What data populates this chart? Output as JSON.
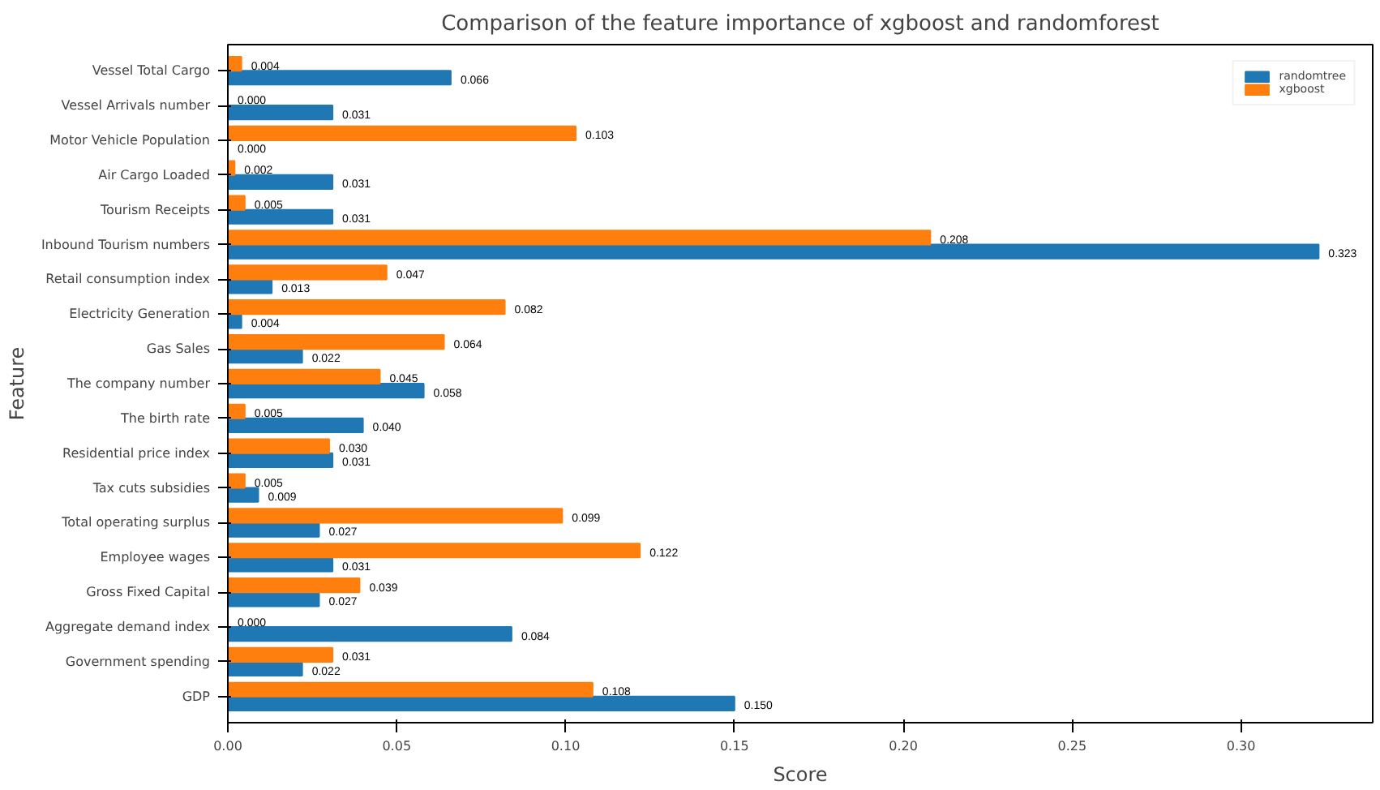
{
  "chart_data": {
    "type": "bar",
    "orientation": "horizontal",
    "title": "Comparison of the feature importance of xgboost and randomforest",
    "xlabel": "Score",
    "ylabel": "Feature",
    "categories": [
      "Vessel Total Cargo",
      "Vessel Arrivals number",
      "Motor Vehicle Population",
      "Air Cargo Loaded",
      "Tourism Receipts",
      "Inbound Tourism numbers",
      "Retail consumption index",
      "Electricity Generation",
      "Gas Sales",
      "The company number",
      "The birth rate",
      "Residential price index",
      "Tax cuts subsidies",
      "Total operating surplus",
      "Employee wages",
      "Gross Fixed Capital",
      "Aggregate demand index",
      "Government spending",
      "GDP"
    ],
    "series": [
      {
        "name": "randomtree",
        "color": "#1f77b4",
        "values": [
          0.066,
          0.031,
          0.0,
          0.031,
          0.031,
          0.323,
          0.013,
          0.004,
          0.022,
          0.058,
          0.04,
          0.031,
          0.009,
          0.027,
          0.031,
          0.027,
          0.084,
          0.022,
          0.15
        ],
        "value_labels": [
          "0.066",
          "0.031",
          "0.000",
          "0.031",
          "0.031",
          "0.323",
          "0.013",
          "0.004",
          "0.022",
          "0.058",
          "0.040",
          "0.031",
          "0.009",
          "0.027",
          "0.031",
          "0.027",
          "0.084",
          "0.022",
          "0.150"
        ]
      },
      {
        "name": "xgboost",
        "color": "#ff7f0e",
        "values": [
          0.004,
          0.0,
          0.103,
          0.002,
          0.005,
          0.208,
          0.047,
          0.082,
          0.064,
          0.045,
          0.005,
          0.03,
          0.005,
          0.099,
          0.122,
          0.039,
          0.0,
          0.031,
          0.108
        ],
        "value_labels": [
          "0.004",
          "0.000",
          "0.103",
          "0.002",
          "0.005",
          "0.208",
          "0.047",
          "0.082",
          "0.064",
          "0.045",
          "0.005",
          "0.030",
          "0.005",
          "0.099",
          "0.122",
          "0.039",
          "0.000",
          "0.031",
          "0.108"
        ]
      }
    ],
    "xlim": [
      0,
      0.339
    ],
    "xticks": [
      {
        "value": 0,
        "label": "0.00"
      },
      {
        "value": 0.05,
        "label": "0.05"
      },
      {
        "value": 0.1,
        "label": "0.10"
      },
      {
        "value": 0.15,
        "label": "0.15"
      },
      {
        "value": 0.2,
        "label": "0.20"
      },
      {
        "value": 0.25,
        "label": "0.25"
      },
      {
        "value": 0.3,
        "label": "0.30"
      }
    ],
    "legend": "top right",
    "grid": false
  }
}
